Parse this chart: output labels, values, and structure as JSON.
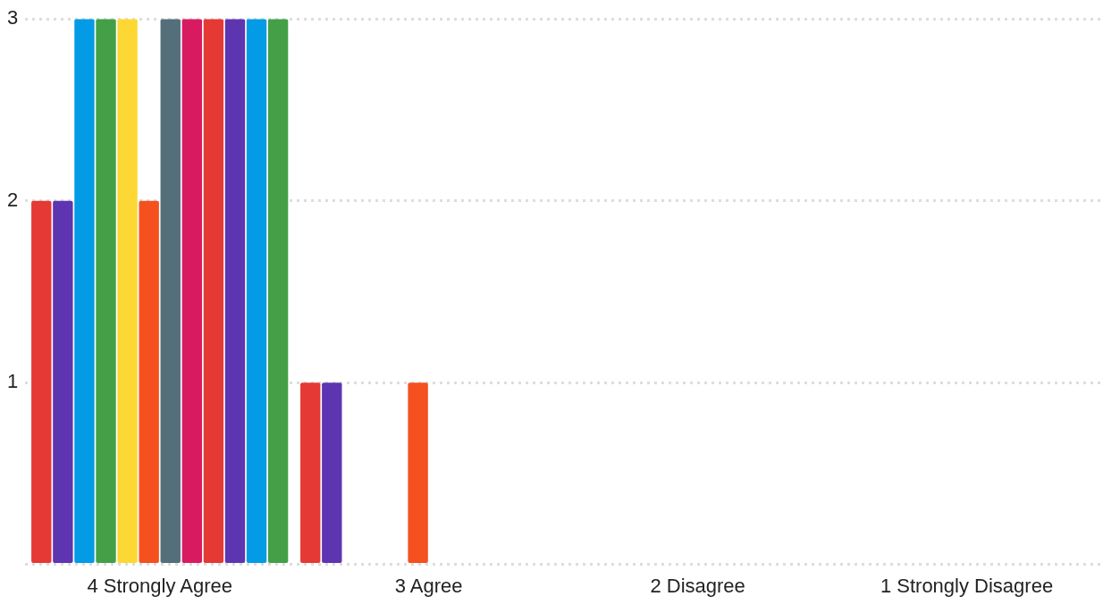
{
  "chart_data": {
    "type": "bar",
    "categories": [
      "4 Strongly Agree",
      "3 Agree",
      "2 Disagree",
      "1 Strongly Disagree"
    ],
    "series": [
      {
        "color": "#e53935",
        "values": [
          2,
          1,
          0,
          0
        ]
      },
      {
        "color": "#5e35b1",
        "values": [
          2,
          1,
          0,
          0
        ]
      },
      {
        "color": "#039be5",
        "values": [
          3,
          0,
          0,
          0
        ]
      },
      {
        "color": "#43a047",
        "values": [
          3,
          0,
          0,
          0
        ]
      },
      {
        "color": "#fdd835",
        "values": [
          3,
          0,
          0,
          0
        ]
      },
      {
        "color": "#f4511e",
        "values": [
          2,
          1,
          0,
          0
        ]
      },
      {
        "color": "#546e7a",
        "values": [
          3,
          0,
          0,
          0
        ]
      },
      {
        "color": "#d81b60",
        "values": [
          3,
          0,
          0,
          0
        ]
      },
      {
        "color": "#e53935",
        "values": [
          3,
          0,
          0,
          0
        ]
      },
      {
        "color": "#5e35b1",
        "values": [
          3,
          0,
          0,
          0
        ]
      },
      {
        "color": "#039be5",
        "values": [
          3,
          0,
          0,
          0
        ]
      },
      {
        "color": "#43a047",
        "values": [
          3,
          0,
          0,
          0
        ]
      }
    ],
    "ylim": [
      0,
      3
    ],
    "yticks": [
      {
        "value": 0,
        "label": null
      },
      1,
      2,
      3
    ],
    "grid": "y",
    "legend": false
  }
}
